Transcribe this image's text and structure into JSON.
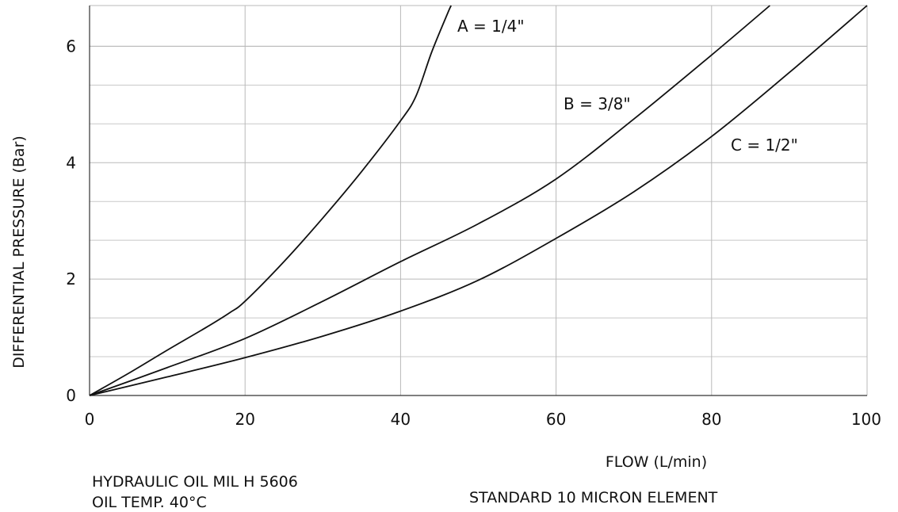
{
  "chart_data": {
    "type": "line",
    "title": "",
    "xlabel": "FLOW (L/min)",
    "ylabel": "DIFFERENTIAL PRESSURE (Bar)",
    "xlim": [
      0,
      100
    ],
    "ylim": [
      0,
      6.7
    ],
    "x_ticks": [
      0,
      20,
      40,
      60,
      80,
      100
    ],
    "y_ticks": [
      0,
      2,
      4,
      6
    ],
    "y_minor_gridlines": [
      0.667,
      1.333,
      2.667,
      3.333,
      4.667,
      5.333,
      6.0
    ],
    "grid": true,
    "legend": "inline-labels",
    "series": [
      {
        "name": "A = 1/4\"",
        "x": [
          0,
          5,
          10,
          15,
          18,
          20,
          25,
          30,
          35,
          40,
          42,
          44,
          46,
          46.5
        ],
        "y": [
          0,
          0.38,
          0.78,
          1.17,
          1.42,
          1.62,
          2.3,
          3.05,
          3.85,
          4.72,
          5.15,
          5.9,
          6.55,
          6.7
        ]
      },
      {
        "name": "B = 3/8\"",
        "x": [
          0,
          10,
          20,
          30,
          40,
          50,
          60,
          70,
          80,
          87.5
        ],
        "y": [
          0,
          0.48,
          0.98,
          1.62,
          2.3,
          2.95,
          3.72,
          4.75,
          5.85,
          6.7
        ]
      },
      {
        "name": "C = 1/2\"",
        "x": [
          0,
          10,
          20,
          30,
          40,
          50,
          60,
          70,
          80,
          90,
          100
        ],
        "y": [
          0,
          0.32,
          0.65,
          1.02,
          1.45,
          1.98,
          2.7,
          3.5,
          4.45,
          5.55,
          6.7
        ]
      }
    ]
  },
  "notes": {
    "fluid_line1": "HYDRAULIC OIL MIL H 5606",
    "fluid_line2": "OIL TEMP. 40°C",
    "element": "STANDARD 10 MICRON ELEMENT"
  }
}
